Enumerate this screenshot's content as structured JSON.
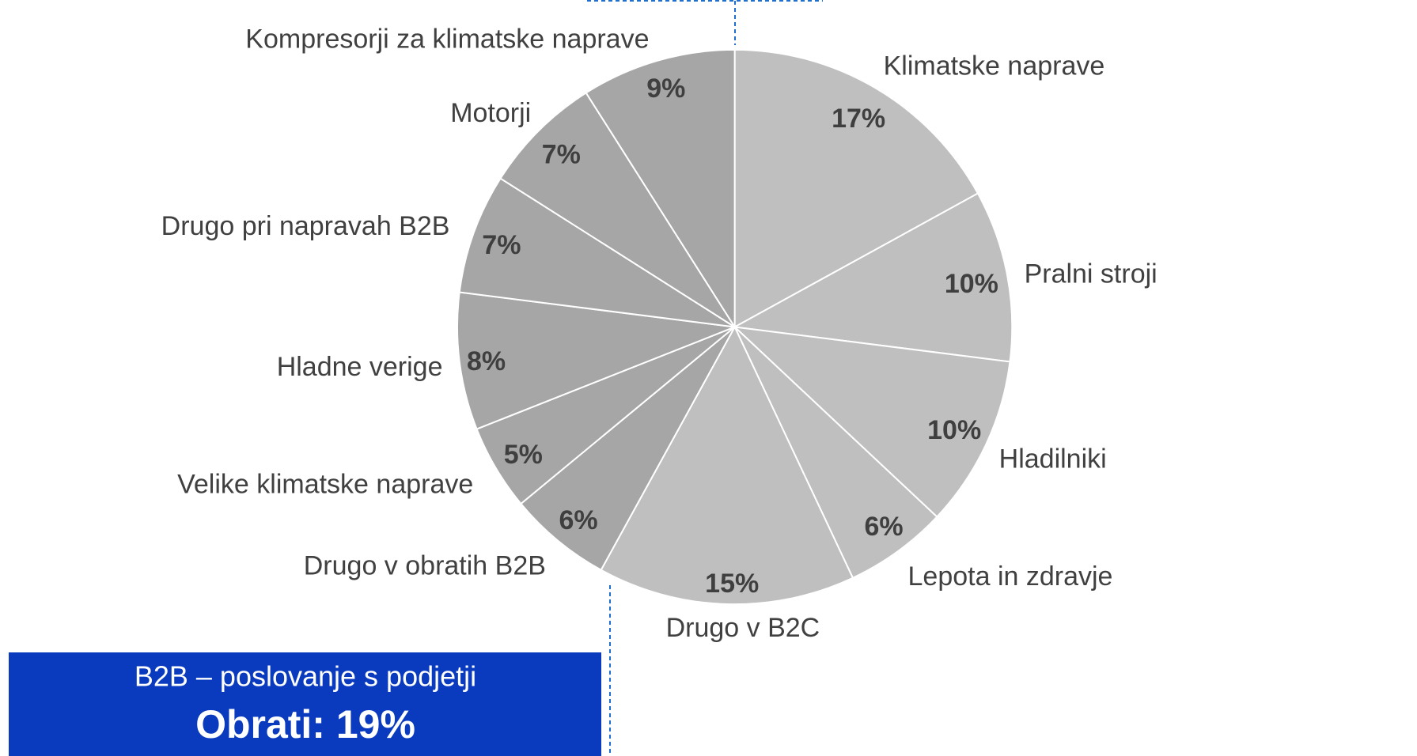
{
  "chart_data": {
    "type": "pie",
    "categories": [
      "Klimatske naprave",
      "Pralni stroji",
      "Hladilniki",
      "Lepota in zdravje",
      "Drugo v B2C",
      "Drugo v obratih B2B",
      "Velike klimatske naprave",
      "Hladne verige",
      "Drugo pri napravah B2B",
      "Motorji",
      "Kompresorji za klimatske naprave"
    ],
    "values": [
      17,
      10,
      10,
      6,
      15,
      6,
      5,
      8,
      7,
      7,
      9
    ],
    "value_labels": [
      "17%",
      "10%",
      "10%",
      "6%",
      "15%",
      "6%",
      "5%",
      "8%",
      "7%",
      "7%",
      "9%"
    ],
    "colors": [
      "#bfbfbf",
      "#bfbfbf",
      "#bfbfbf",
      "#bfbfbf",
      "#bfbfbf",
      "#a6a6a6",
      "#a6a6a6",
      "#a6a6a6",
      "#a6a6a6",
      "#a6a6a6",
      "#a6a6a6"
    ]
  },
  "box": {
    "title": "B2B – poslovanje s podjetji",
    "total": "Obrati: 19%"
  }
}
